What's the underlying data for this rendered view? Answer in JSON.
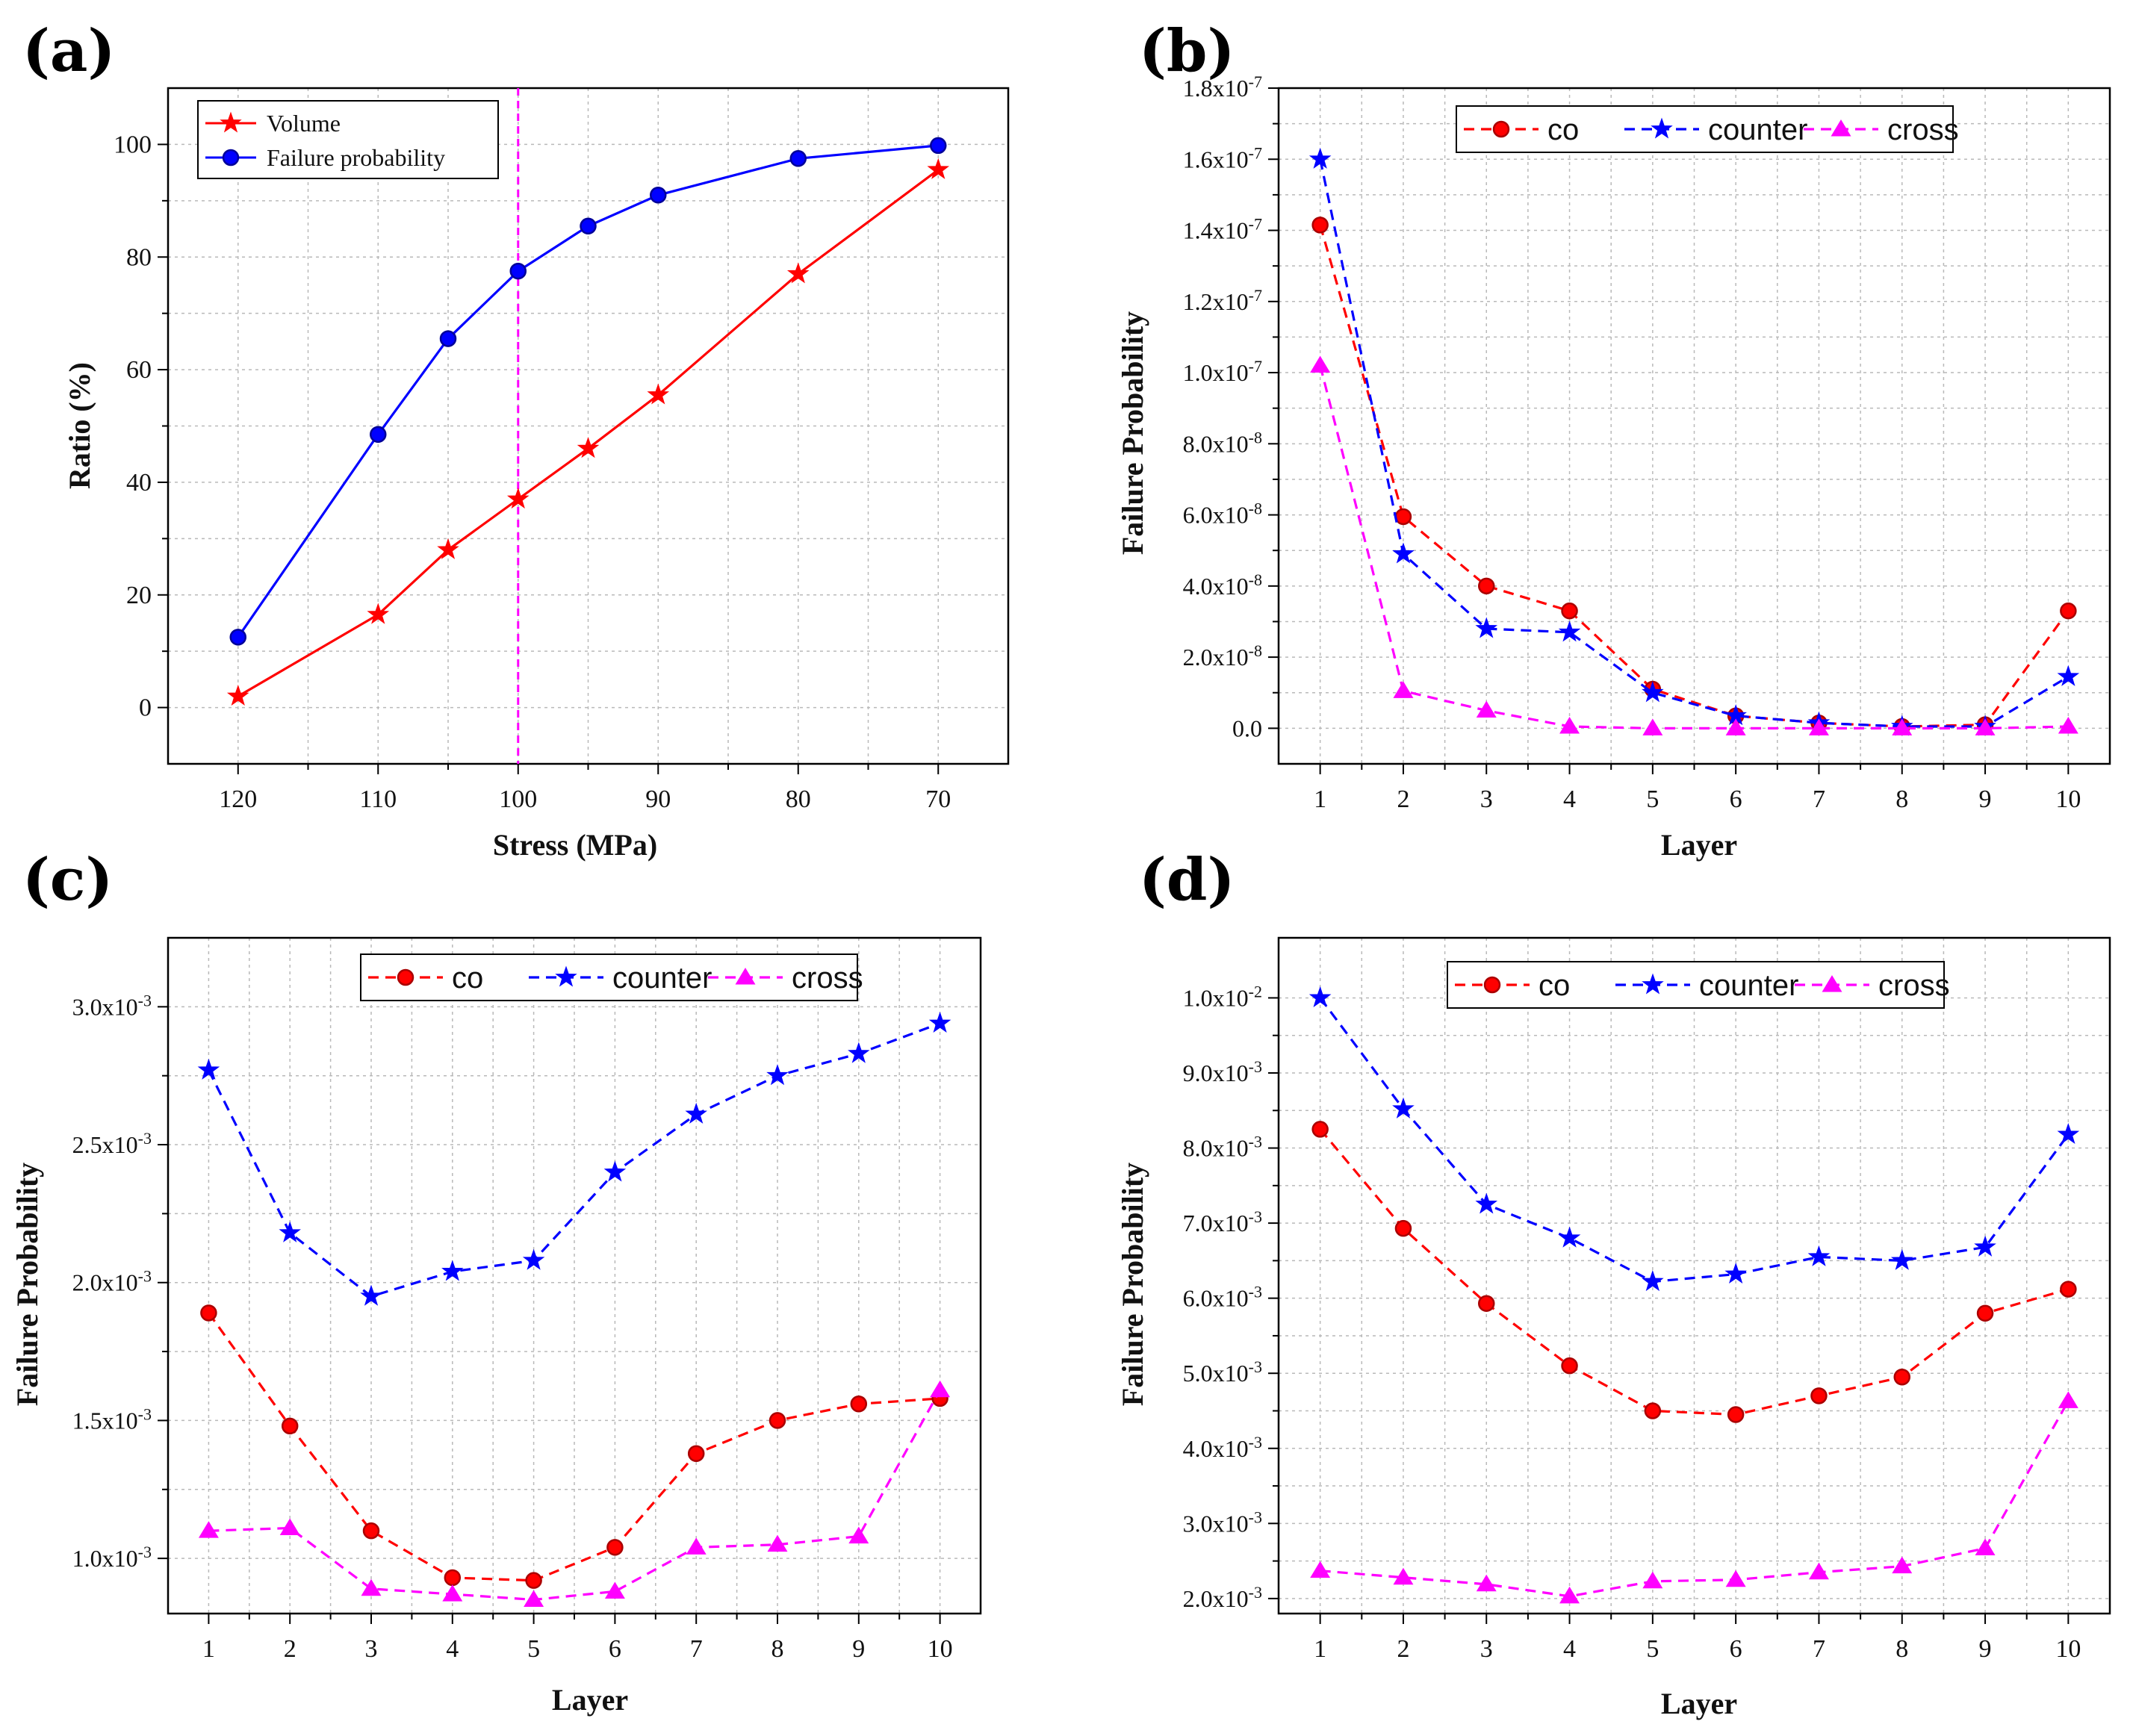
{
  "chart_data": [
    {
      "panel": "(a)",
      "type": "line",
      "xlabel": "Stress (MPa)",
      "ylabel": "Ratio (%)",
      "x_reversed": true,
      "xlim": [
        125,
        65
      ],
      "ylim": [
        -10,
        110
      ],
      "xticks": [
        120,
        110,
        100,
        90,
        80,
        70
      ],
      "yticks": [
        0,
        20,
        40,
        60,
        80,
        100
      ],
      "grid": true,
      "vline": {
        "x": 100,
        "color": "#ff00ff",
        "style": "dashed"
      },
      "legend_position": "top-left",
      "series": [
        {
          "name": "Volume",
          "color": "#ff0000",
          "marker": "star",
          "linestyle": "solid",
          "x": [
            120,
            110,
            105,
            100,
            95,
            90,
            80,
            70
          ],
          "y": [
            2,
            16.5,
            28,
            37,
            46,
            55.5,
            77,
            95.5
          ]
        },
        {
          "name": "Failure probability",
          "color": "#0000ff",
          "marker": "circle",
          "linestyle": "solid",
          "x": [
            120,
            110,
            105,
            100,
            95,
            90,
            80,
            70
          ],
          "y": [
            12.5,
            48.5,
            65.5,
            77.5,
            85.5,
            91,
            97.5,
            99.8
          ]
        }
      ]
    },
    {
      "panel": "(b)",
      "type": "line",
      "xlabel": "Layer",
      "ylabel": "Failure Probability",
      "xlim": [
        0.5,
        10.5
      ],
      "ylim": [
        -1e-08,
        1.8e-07
      ],
      "xticks": [
        1,
        2,
        3,
        4,
        5,
        6,
        7,
        8,
        9,
        10
      ],
      "yticks": [
        0,
        2e-08,
        4e-08,
        6e-08,
        8e-08,
        1e-07,
        1.2e-07,
        1.4e-07,
        1.6e-07,
        1.8e-07
      ],
      "ytick_labels": [
        "0.0",
        "2.0x10⁻⁸",
        "4.0x10⁻⁸",
        "6.0x10⁻⁸",
        "8.0x10⁻⁸",
        "1.0x10⁻⁷",
        "1.2x10⁻⁷",
        "1.4x10⁻⁷",
        "1.6x10⁻⁷",
        "1.8x10⁻⁷"
      ],
      "grid": true,
      "legend_position": "top",
      "x": [
        1,
        2,
        3,
        4,
        5,
        6,
        7,
        8,
        9,
        10
      ],
      "series": [
        {
          "name": "co",
          "color": "#ff0000",
          "marker": "circle",
          "linestyle": "dashed",
          "values": [
            1.415e-07,
            5.95e-08,
            4e-08,
            3.3e-08,
            1.1e-08,
            3.5e-09,
            1.5e-09,
            5e-10,
            1e-09,
            3.3e-08
          ]
        },
        {
          "name": "counter",
          "color": "#0000ff",
          "marker": "star",
          "linestyle": "dashed",
          "values": [
            1.6e-07,
            4.9e-08,
            2.8e-08,
            2.7e-08,
            1e-08,
            3.5e-09,
            1.5e-09,
            5e-10,
            5e-10,
            1.45e-08
          ]
        },
        {
          "name": "cross",
          "color": "#ff00ff",
          "marker": "triangle",
          "linestyle": "dashed",
          "values": [
            1.02e-07,
            1.05e-08,
            5e-09,
            5e-10,
            0,
            0,
            0,
            0,
            0,
            5e-10
          ]
        }
      ]
    },
    {
      "panel": "(c)",
      "type": "line",
      "xlabel": "Layer",
      "ylabel": "Failure Probability",
      "xlim": [
        0.5,
        10.5
      ],
      "ylim": [
        0.0008,
        0.00325
      ],
      "xticks": [
        1,
        2,
        3,
        4,
        5,
        6,
        7,
        8,
        9,
        10
      ],
      "yticks": [
        0.001,
        0.0015,
        0.002,
        0.0025,
        0.003
      ],
      "ytick_labels": [
        "1.0x10⁻³",
        "1.5x10⁻³",
        "2.0x10⁻³",
        "2.5x10⁻³",
        "3.0x10⁻³"
      ],
      "grid": true,
      "legend_position": "top",
      "x": [
        1,
        2,
        3,
        4,
        5,
        6,
        7,
        8,
        9,
        10
      ],
      "series": [
        {
          "name": "co",
          "color": "#ff0000",
          "marker": "circle",
          "linestyle": "dashed",
          "values": [
            0.00189,
            0.00148,
            0.0011,
            0.00093,
            0.00092,
            0.00104,
            0.00138,
            0.0015,
            0.00156,
            0.00158
          ]
        },
        {
          "name": "counter",
          "color": "#0000ff",
          "marker": "star",
          "linestyle": "dashed",
          "values": [
            0.00277,
            0.00218,
            0.00195,
            0.00204,
            0.00208,
            0.0024,
            0.00261,
            0.00275,
            0.00283,
            0.00294
          ]
        },
        {
          "name": "cross",
          "color": "#ff00ff",
          "marker": "triangle",
          "linestyle": "dashed",
          "values": [
            0.0011,
            0.00111,
            0.00089,
            0.00087,
            0.00085,
            0.00088,
            0.00104,
            0.00105,
            0.00108,
            0.00161
          ]
        }
      ]
    },
    {
      "panel": "(d)",
      "type": "line",
      "xlabel": "Layer",
      "ylabel": "Failure Probability",
      "xlim": [
        0.5,
        10.5
      ],
      "ylim": [
        0.0018,
        0.0108
      ],
      "xticks": [
        1,
        2,
        3,
        4,
        5,
        6,
        7,
        8,
        9,
        10
      ],
      "yticks": [
        0.002,
        0.003,
        0.004,
        0.005,
        0.006,
        0.007,
        0.008,
        0.009,
        0.01
      ],
      "ytick_labels": [
        "2.0x10⁻³",
        "3.0x10⁻³",
        "4.0x10⁻³",
        "5.0x10⁻³",
        "6.0x10⁻³",
        "7.0x10⁻³",
        "8.0x10⁻³",
        "9.0x10⁻³",
        "1.0x10⁻²"
      ],
      "grid": true,
      "legend_position": "top",
      "x": [
        1,
        2,
        3,
        4,
        5,
        6,
        7,
        8,
        9,
        10
      ],
      "series": [
        {
          "name": "co",
          "color": "#ff0000",
          "marker": "circle",
          "linestyle": "dashed",
          "values": [
            0.00825,
            0.00693,
            0.00593,
            0.0051,
            0.0045,
            0.00445,
            0.0047,
            0.00495,
            0.0058,
            0.00612
          ]
        },
        {
          "name": "counter",
          "color": "#0000ff",
          "marker": "star",
          "linestyle": "dashed",
          "values": [
            0.01,
            0.00852,
            0.00725,
            0.0068,
            0.00622,
            0.00632,
            0.00655,
            0.0065,
            0.00668,
            0.00818
          ]
        },
        {
          "name": "cross",
          "color": "#ff00ff",
          "marker": "triangle",
          "linestyle": "dashed",
          "values": [
            0.00237,
            0.00228,
            0.00219,
            0.00203,
            0.00223,
            0.00225,
            0.00235,
            0.00243,
            0.00267,
            0.00463
          ]
        }
      ]
    }
  ]
}
